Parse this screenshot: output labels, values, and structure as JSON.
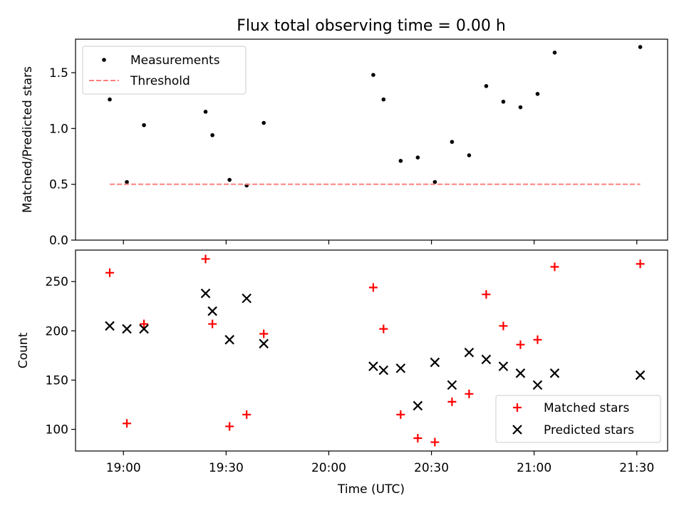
{
  "title": "Flux total observing time = 0.00 h",
  "chart_data": [
    {
      "type": "scatter",
      "title": "Flux total observing time = 0.00 h",
      "xlabel": "",
      "ylabel": "Matched/Predicted stars",
      "xlim": [
        "18:46",
        "21:39"
      ],
      "ylim": [
        0,
        1.8
      ],
      "yticks": [
        "0.0",
        "0.5",
        "1.0",
        "1.5"
      ],
      "grid": false,
      "legend_position": "top-left",
      "series": [
        {
          "name": "Measurements",
          "marker": "dot",
          "color": "#000000",
          "x": [
            "18:56",
            "19:01",
            "19:06",
            "19:24",
            "19:26",
            "19:31",
            "19:36",
            "19:41",
            "20:13",
            "20:16",
            "20:21",
            "20:26",
            "20:31",
            "20:36",
            "20:41",
            "20:46",
            "20:51",
            "20:56",
            "21:01",
            "21:06",
            "21:31"
          ],
          "y": [
            1.26,
            0.52,
            1.03,
            1.15,
            0.94,
            0.54,
            0.49,
            1.05,
            1.48,
            1.26,
            0.71,
            0.74,
            0.52,
            0.88,
            0.76,
            1.38,
            1.24,
            1.19,
            1.31,
            1.68,
            1.73
          ]
        },
        {
          "name": "Threshold",
          "marker": "dashed-line",
          "color": "#ff7f7f",
          "x": [
            "18:56",
            "21:31"
          ],
          "y": [
            0.5,
            0.5
          ]
        }
      ]
    },
    {
      "type": "scatter",
      "xlabel": "Time (UTC)",
      "ylabel": "Count",
      "xlim": [
        "18:46",
        "21:39"
      ],
      "ylim": [
        78,
        282
      ],
      "yticks": [
        "100",
        "150",
        "200",
        "250"
      ],
      "xticks": [
        "19:00",
        "19:30",
        "20:00",
        "20:30",
        "21:00",
        "21:30"
      ],
      "grid": false,
      "legend_position": "bottom-right",
      "series": [
        {
          "name": "Matched stars",
          "marker": "plus",
          "color": "#ff0000",
          "x": [
            "18:56",
            "19:01",
            "19:06",
            "19:24",
            "19:26",
            "19:31",
            "19:36",
            "19:41",
            "20:13",
            "20:16",
            "20:21",
            "20:26",
            "20:31",
            "20:36",
            "20:41",
            "20:46",
            "20:51",
            "20:56",
            "21:01",
            "21:06",
            "21:31"
          ],
          "y": [
            259,
            106,
            207,
            273,
            207,
            103,
            115,
            197,
            244,
            202,
            115,
            91,
            87,
            128,
            136,
            237,
            205,
            186,
            191,
            265,
            268
          ]
        },
        {
          "name": "Predicted stars",
          "marker": "x",
          "color": "#000000",
          "x": [
            "18:56",
            "19:01",
            "19:06",
            "19:24",
            "19:26",
            "19:31",
            "19:36",
            "19:41",
            "20:13",
            "20:16",
            "20:21",
            "20:26",
            "20:31",
            "20:36",
            "20:41",
            "20:46",
            "20:51",
            "20:56",
            "21:01",
            "21:06",
            "21:31"
          ],
          "y": [
            205,
            202,
            202,
            238,
            220,
            191,
            233,
            187,
            164,
            160,
            162,
            124,
            168,
            145,
            178,
            171,
            164,
            157,
            145,
            157,
            155
          ]
        }
      ]
    }
  ]
}
